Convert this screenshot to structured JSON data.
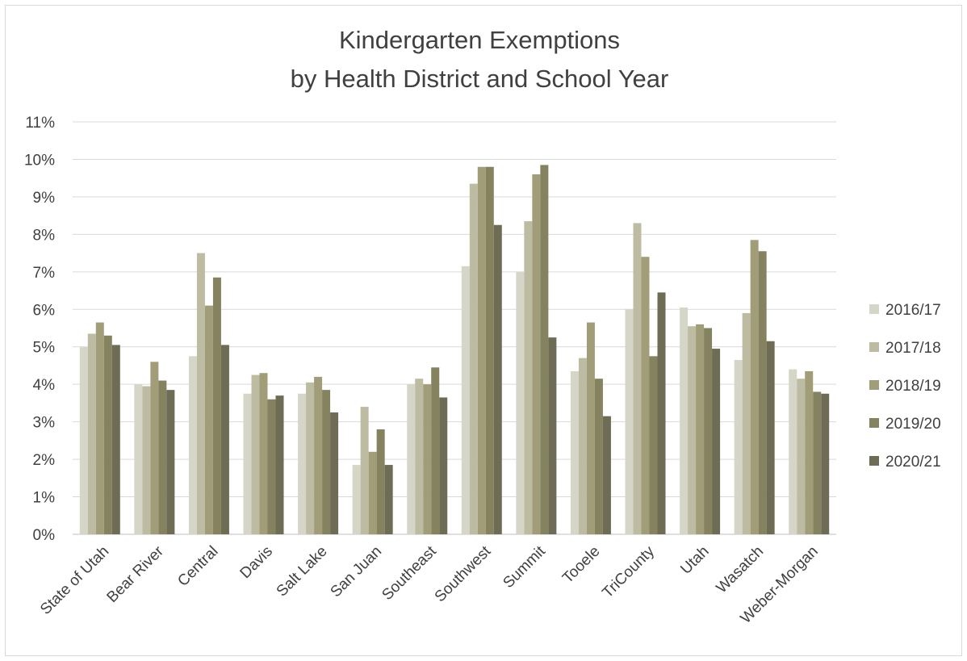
{
  "chart_data": {
    "type": "bar",
    "title": "Kindergarten Exemptions",
    "subtitle": "by Health District and School Year",
    "ylim": [
      0,
      11
    ],
    "yticks": [
      "0%",
      "1%",
      "2%",
      "3%",
      "4%",
      "5%",
      "6%",
      "7%",
      "8%",
      "9%",
      "10%",
      "11%"
    ],
    "grid": true,
    "legend_position": "right",
    "categories": [
      "State of Utah",
      "Bear River",
      "Central",
      "Davis",
      "Salt Lake",
      "San Juan",
      "Southeast",
      "Southwest",
      "Summit",
      "Tooele",
      "TriCounty",
      "Utah",
      "Wasatch",
      "Weber-Morgan"
    ],
    "series": [
      {
        "name": "2016/17",
        "color": "#d6d6c8",
        "values": [
          5.0,
          4.0,
          4.75,
          3.75,
          3.75,
          1.85,
          4.0,
          7.15,
          7.0,
          4.35,
          6.0,
          6.05,
          4.65,
          4.4
        ]
      },
      {
        "name": "2017/18",
        "color": "#bdbca3",
        "values": [
          5.35,
          3.95,
          7.5,
          4.25,
          4.05,
          3.4,
          4.15,
          9.35,
          8.35,
          4.7,
          8.3,
          5.55,
          5.9,
          4.15
        ]
      },
      {
        "name": "2018/19",
        "color": "#a09d78",
        "values": [
          5.65,
          4.6,
          6.1,
          4.3,
          4.2,
          2.2,
          4.0,
          9.8,
          9.6,
          5.65,
          7.4,
          5.6,
          7.85,
          4.35
        ]
      },
      {
        "name": "2019/20",
        "color": "#858260",
        "values": [
          5.3,
          4.1,
          6.85,
          3.6,
          3.85,
          2.8,
          4.45,
          9.8,
          9.85,
          4.15,
          4.75,
          5.5,
          7.55,
          3.8
        ]
      },
      {
        "name": "2020/21",
        "color": "#6e6c54",
        "values": [
          5.05,
          3.85,
          5.05,
          3.7,
          3.25,
          1.85,
          3.65,
          8.25,
          5.25,
          3.15,
          6.45,
          4.95,
          5.15,
          3.75
        ]
      }
    ]
  }
}
